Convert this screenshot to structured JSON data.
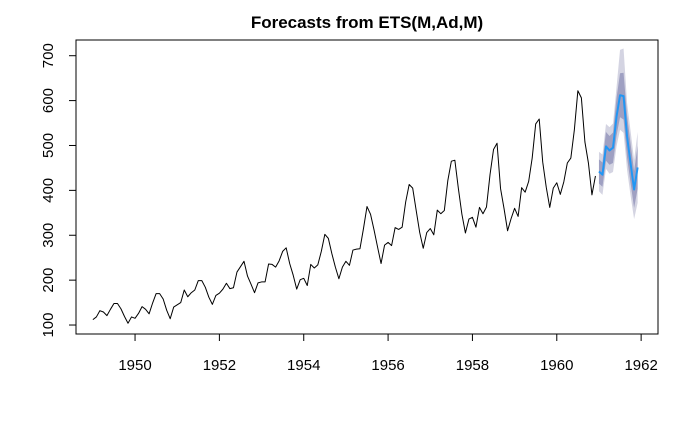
{
  "chart_data": {
    "type": "line",
    "title": "Forecasts from ETS(M,Ad,M)",
    "xlabel": "",
    "ylabel": "",
    "x_ticks": [
      1950,
      1952,
      1954,
      1956,
      1958,
      1960,
      1962
    ],
    "y_ticks": [
      100,
      200,
      300,
      400,
      500,
      600,
      700
    ],
    "xlim": [
      1948.6,
      1962.4
    ],
    "ylim": [
      80,
      735
    ],
    "grid": false,
    "legend": "none",
    "series": [
      {
        "kind": "observed",
        "color": "#000000",
        "start": 1949,
        "frequency": 12,
        "values": [
          112,
          118,
          132,
          129,
          121,
          135,
          148,
          148,
          136,
          119,
          104,
          118,
          115,
          126,
          141,
          135,
          125,
          149,
          170,
          170,
          158,
          133,
          114,
          140,
          145,
          150,
          178,
          163,
          172,
          178,
          199,
          199,
          184,
          162,
          146,
          166,
          171,
          180,
          193,
          181,
          183,
          218,
          230,
          242,
          209,
          191,
          172,
          194,
          196,
          196,
          236,
          235,
          229,
          243,
          264,
          272,
          237,
          211,
          180,
          201,
          204,
          188,
          235,
          227,
          234,
          264,
          302,
          293,
          259,
          229,
          203,
          229,
          242,
          233,
          267,
          269,
          270,
          315,
          364,
          347,
          312,
          274,
          237,
          278,
          284,
          277,
          317,
          313,
          318,
          374,
          413,
          405,
          355,
          306,
          271,
          306,
          315,
          301,
          356,
          348,
          355,
          422,
          465,
          467,
          404,
          347,
          305,
          336,
          340,
          318,
          362,
          348,
          363,
          435,
          491,
          505,
          404,
          359,
          310,
          337,
          360,
          342,
          406,
          396,
          420,
          472,
          548,
          559,
          463,
          407,
          362,
          405,
          417,
          391,
          419,
          461,
          472,
          535,
          622,
          606,
          508,
          461,
          390,
          432
        ]
      },
      {
        "kind": "forecast",
        "color": "#2196F3",
        "start": 1961,
        "frequency": 12,
        "values": [
          442,
          435,
          498,
          489,
          495,
          564,
          612,
          610,
          520,
          460,
          402,
          451
        ],
        "lower80": [
          415,
          408,
          466,
          457,
          461,
          522,
          563,
          558,
          473,
          416,
          361,
          403
        ],
        "upper80": [
          469,
          462,
          530,
          521,
          529,
          606,
          661,
          662,
          567,
          504,
          443,
          499
        ],
        "lower95": [
          398,
          390,
          448,
          437,
          441,
          498,
          535,
          528,
          445,
          388,
          336,
          372
        ],
        "upper95": [
          486,
          480,
          548,
          541,
          549,
          630,
          713,
          716,
          595,
          532,
          468,
          530
        ],
        "band80_color": "#9FA0C2",
        "band95_color": "#D4D4E2"
      }
    ]
  }
}
